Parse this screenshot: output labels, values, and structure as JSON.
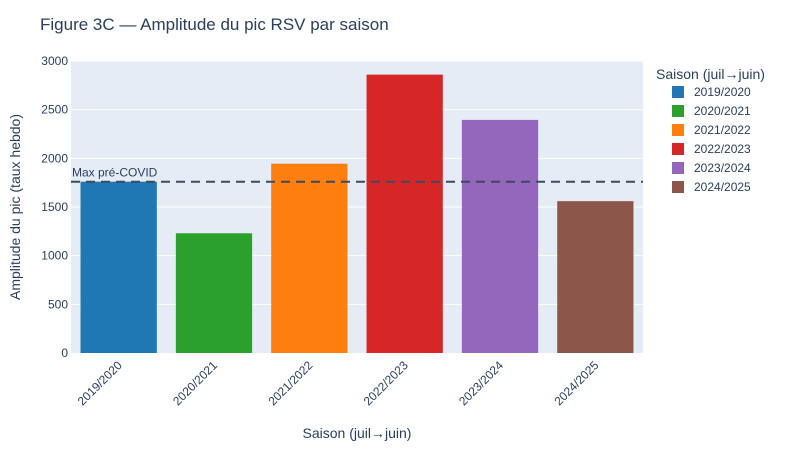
{
  "chart_data": {
    "type": "bar",
    "title": "Figure 3C — Amplitude du pic RSV par saison",
    "xlabel": "Saison (juil→juin)",
    "ylabel": "Amplitude du pic (taux hebdo)",
    "ylim": [
      0,
      3000
    ],
    "yticks": [
      0,
      500,
      1000,
      1500,
      2000,
      2500,
      3000
    ],
    "categories": [
      "2019/2020",
      "2020/2021",
      "2021/2022",
      "2022/2023",
      "2023/2024",
      "2024/2025"
    ],
    "values": [
      1760,
      1230,
      1945,
      2860,
      2395,
      1560
    ],
    "colors": [
      "#1f77b4",
      "#2ca02c",
      "#ff7f0e",
      "#d62728",
      "#9467bd",
      "#8c564b"
    ],
    "legend": {
      "title": "Saison (juil→juin)",
      "position": "right",
      "entries": [
        "2019/2020",
        "2020/2021",
        "2021/2022",
        "2022/2023",
        "2023/2024",
        "2024/2025"
      ]
    },
    "reference_line": {
      "label": "Max pré-COVID",
      "value": 1760,
      "style": "dashed"
    },
    "grid": true,
    "background": "#e5ecf6"
  }
}
